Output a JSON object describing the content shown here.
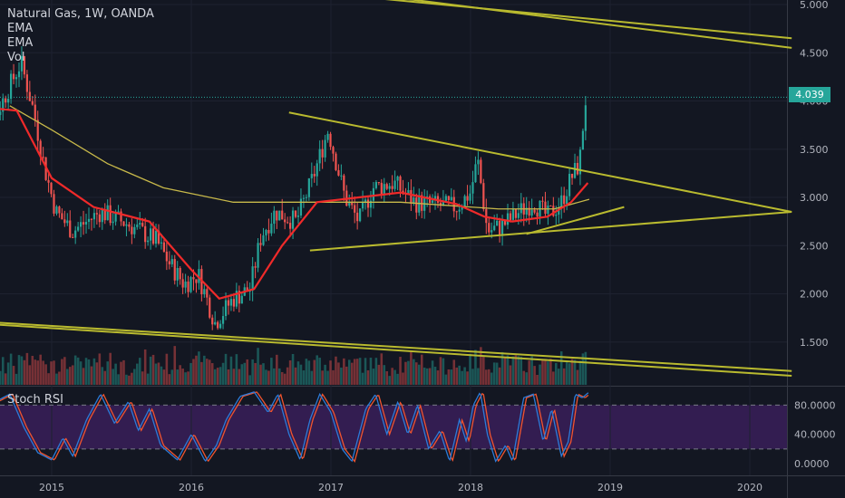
{
  "legend": {
    "symbol": "Natural Gas, 1W, OANDA",
    "ema1": "EMA",
    "ema2": "EMA",
    "vol": "Vol"
  },
  "last_price_label": "4.039",
  "rsi_title": "Stoch RSI",
  "chart_data": [
    {
      "type": "candlestick",
      "title": "Natural Gas, 1W, OANDA",
      "x_ticks": [
        "2015",
        "2016",
        "2017",
        "2018",
        "2019",
        "2020"
      ],
      "y_ticks": [
        "1.500",
        "2.000",
        "2.500",
        "3.000",
        "3.500",
        "4.000",
        "4.500",
        "5.000"
      ],
      "ylim": [
        1.1,
        5.0
      ],
      "last_price": 4.039,
      "anchors": [
        {
          "x": 2014.42,
          "y": 4.05
        },
        {
          "x": 2014.6,
          "y": 3.85
        },
        {
          "x": 2014.78,
          "y": 4.4
        },
        {
          "x": 2014.87,
          "y": 3.9
        },
        {
          "x": 2014.95,
          "y": 3.3
        },
        {
          "x": 2015.03,
          "y": 2.85
        },
        {
          "x": 2015.15,
          "y": 2.65
        },
        {
          "x": 2015.35,
          "y": 2.85
        },
        {
          "x": 2015.55,
          "y": 2.72
        },
        {
          "x": 2015.75,
          "y": 2.55
        },
        {
          "x": 2015.85,
          "y": 2.3
        },
        {
          "x": 2015.95,
          "y": 2.1
        },
        {
          "x": 2016.05,
          "y": 2.2
        },
        {
          "x": 2016.17,
          "y": 1.7
        },
        {
          "x": 2016.3,
          "y": 1.95
        },
        {
          "x": 2016.42,
          "y": 2.05
        },
        {
          "x": 2016.5,
          "y": 2.6
        },
        {
          "x": 2016.6,
          "y": 2.85
        },
        {
          "x": 2016.75,
          "y": 2.75
        },
        {
          "x": 2016.87,
          "y": 3.2
        },
        {
          "x": 2016.98,
          "y": 3.7
        },
        {
          "x": 2017.1,
          "y": 3.0
        },
        {
          "x": 2017.2,
          "y": 2.75
        },
        {
          "x": 2017.3,
          "y": 3.1
        },
        {
          "x": 2017.45,
          "y": 3.15
        },
        {
          "x": 2017.6,
          "y": 2.95
        },
        {
          "x": 2017.75,
          "y": 2.92
        },
        {
          "x": 2017.9,
          "y": 2.9
        },
        {
          "x": 2018.0,
          "y": 3.05
        },
        {
          "x": 2018.05,
          "y": 3.4
        },
        {
          "x": 2018.12,
          "y": 2.65
        },
        {
          "x": 2018.22,
          "y": 2.7
        },
        {
          "x": 2018.35,
          "y": 2.85
        },
        {
          "x": 2018.45,
          "y": 2.95
        },
        {
          "x": 2018.55,
          "y": 2.8
        },
        {
          "x": 2018.65,
          "y": 2.95
        },
        {
          "x": 2018.72,
          "y": 3.2
        },
        {
          "x": 2018.78,
          "y": 3.35
        },
        {
          "x": 2018.83,
          "y": 4.04
        }
      ],
      "ema_fast": [
        {
          "x": 2014.4,
          "y": 3.95
        },
        {
          "x": 2014.75,
          "y": 3.9
        },
        {
          "x": 2015.0,
          "y": 3.2
        },
        {
          "x": 2015.3,
          "y": 2.9
        },
        {
          "x": 2015.7,
          "y": 2.75
        },
        {
          "x": 2016.0,
          "y": 2.25
        },
        {
          "x": 2016.2,
          "y": 1.95
        },
        {
          "x": 2016.45,
          "y": 2.05
        },
        {
          "x": 2016.65,
          "y": 2.5
        },
        {
          "x": 2016.9,
          "y": 2.95
        },
        {
          "x": 2017.2,
          "y": 3.0
        },
        {
          "x": 2017.5,
          "y": 3.05
        },
        {
          "x": 2017.9,
          "y": 2.93
        },
        {
          "x": 2018.1,
          "y": 2.8
        },
        {
          "x": 2018.3,
          "y": 2.75
        },
        {
          "x": 2018.55,
          "y": 2.8
        },
        {
          "x": 2018.72,
          "y": 2.95
        },
        {
          "x": 2018.84,
          "y": 3.15
        }
      ],
      "ema_slow": [
        {
          "x": 2014.7,
          "y": 3.95
        },
        {
          "x": 2015.0,
          "y": 3.7
        },
        {
          "x": 2015.4,
          "y": 3.35
        },
        {
          "x": 2015.8,
          "y": 3.1
        },
        {
          "x": 2016.3,
          "y": 2.95
        },
        {
          "x": 2016.9,
          "y": 2.95
        },
        {
          "x": 2017.5,
          "y": 2.95
        },
        {
          "x": 2018.2,
          "y": 2.88
        },
        {
          "x": 2018.6,
          "y": 2.88
        },
        {
          "x": 2018.85,
          "y": 2.98
        }
      ],
      "trendlines": [
        {
          "x1": 2016.7,
          "y1": 3.88,
          "x2": 2020.3,
          "y2": 2.85
        },
        {
          "x1": 2016.85,
          "y1": 2.45,
          "x2": 2020.3,
          "y2": 2.85
        },
        {
          "x1": 2018.4,
          "y1": 2.62,
          "x2": 2019.1,
          "y2": 2.9
        },
        {
          "x1": 2016.5,
          "y1": 5.25,
          "x2": 2020.3,
          "y2": 4.55
        },
        {
          "x1": 2016.0,
          "y1": 5.25,
          "x2": 2020.3,
          "y2": 4.65
        },
        {
          "x1": 2014.4,
          "y1": 1.72,
          "x2": 2020.3,
          "y2": 1.2
        },
        {
          "x1": 2014.4,
          "y1": 1.7,
          "x2": 2020.3,
          "y2": 1.15
        }
      ]
    },
    {
      "type": "line",
      "title": "Stoch RSI",
      "y_ticks": [
        "0.0000",
        "40.0000",
        "80.0000"
      ],
      "ylim": [
        -5,
        105
      ],
      "band": [
        20,
        80
      ],
      "k": [
        {
          "x": 2014.4,
          "y": 60
        },
        {
          "x": 2014.5,
          "y": 30
        },
        {
          "x": 2014.6,
          "y": 85
        },
        {
          "x": 2014.7,
          "y": 95
        },
        {
          "x": 2014.8,
          "y": 50
        },
        {
          "x": 2014.9,
          "y": 15
        },
        {
          "x": 2015.0,
          "y": 5
        },
        {
          "x": 2015.08,
          "y": 35
        },
        {
          "x": 2015.15,
          "y": 10
        },
        {
          "x": 2015.25,
          "y": 60
        },
        {
          "x": 2015.35,
          "y": 95
        },
        {
          "x": 2015.45,
          "y": 55
        },
        {
          "x": 2015.55,
          "y": 85
        },
        {
          "x": 2015.62,
          "y": 45
        },
        {
          "x": 2015.7,
          "y": 75
        },
        {
          "x": 2015.78,
          "y": 25
        },
        {
          "x": 2015.9,
          "y": 5
        },
        {
          "x": 2016.0,
          "y": 40
        },
        {
          "x": 2016.1,
          "y": 3
        },
        {
          "x": 2016.18,
          "y": 25
        },
        {
          "x": 2016.25,
          "y": 60
        },
        {
          "x": 2016.35,
          "y": 92
        },
        {
          "x": 2016.45,
          "y": 98
        },
        {
          "x": 2016.55,
          "y": 70
        },
        {
          "x": 2016.62,
          "y": 95
        },
        {
          "x": 2016.7,
          "y": 40
        },
        {
          "x": 2016.78,
          "y": 5
        },
        {
          "x": 2016.85,
          "y": 60
        },
        {
          "x": 2016.92,
          "y": 95
        },
        {
          "x": 2017.0,
          "y": 70
        },
        {
          "x": 2017.08,
          "y": 20
        },
        {
          "x": 2017.15,
          "y": 3
        },
        {
          "x": 2017.25,
          "y": 75
        },
        {
          "x": 2017.32,
          "y": 95
        },
        {
          "x": 2017.4,
          "y": 40
        },
        {
          "x": 2017.48,
          "y": 85
        },
        {
          "x": 2017.55,
          "y": 40
        },
        {
          "x": 2017.62,
          "y": 80
        },
        {
          "x": 2017.7,
          "y": 20
        },
        {
          "x": 2017.78,
          "y": 45
        },
        {
          "x": 2017.85,
          "y": 3
        },
        {
          "x": 2017.92,
          "y": 60
        },
        {
          "x": 2017.97,
          "y": 30
        },
        {
          "x": 2018.02,
          "y": 80
        },
        {
          "x": 2018.07,
          "y": 98
        },
        {
          "x": 2018.12,
          "y": 40
        },
        {
          "x": 2018.18,
          "y": 3
        },
        {
          "x": 2018.25,
          "y": 25
        },
        {
          "x": 2018.3,
          "y": 3
        },
        {
          "x": 2018.38,
          "y": 90
        },
        {
          "x": 2018.45,
          "y": 95
        },
        {
          "x": 2018.52,
          "y": 30
        },
        {
          "x": 2018.58,
          "y": 75
        },
        {
          "x": 2018.65,
          "y": 10
        },
        {
          "x": 2018.7,
          "y": 30
        },
        {
          "x": 2018.75,
          "y": 95
        },
        {
          "x": 2018.8,
          "y": 90
        },
        {
          "x": 2018.85,
          "y": 98
        }
      ]
    }
  ]
}
